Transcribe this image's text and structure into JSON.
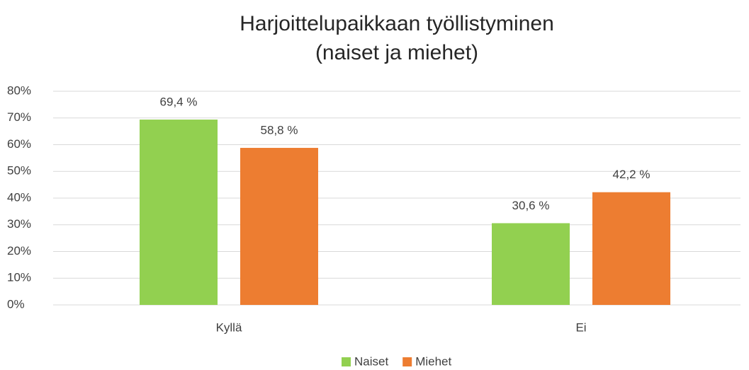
{
  "chart_data": {
    "type": "bar",
    "title": "Harjoittelupaikkaan työllistyminen",
    "subtitle": "(naiset ja miehet)",
    "categories": [
      "Kyllä",
      "Ei"
    ],
    "series": [
      {
        "name": "Naiset",
        "color": "#92d050",
        "values": [
          69.4,
          30.6
        ],
        "value_labels": [
          "69,4 %",
          "30,6 %"
        ]
      },
      {
        "name": "Miehet",
        "color": "#ed7d31",
        "values": [
          58.8,
          42.2
        ],
        "value_labels": [
          "58,8 %",
          "42,2 %"
        ]
      }
    ],
    "ylim": [
      0,
      80
    ],
    "yticks": [
      {
        "value": 0,
        "label": "0%"
      },
      {
        "value": 10,
        "label": "10%"
      },
      {
        "value": 20,
        "label": "20%"
      },
      {
        "value": 30,
        "label": "30%"
      },
      {
        "value": 40,
        "label": "40%"
      },
      {
        "value": 50,
        "label": "50%"
      },
      {
        "value": 60,
        "label": "60%"
      },
      {
        "value": 70,
        "label": "70%"
      },
      {
        "value": 80,
        "label": "80%"
      }
    ],
    "grid": true,
    "legend": "bottom"
  }
}
